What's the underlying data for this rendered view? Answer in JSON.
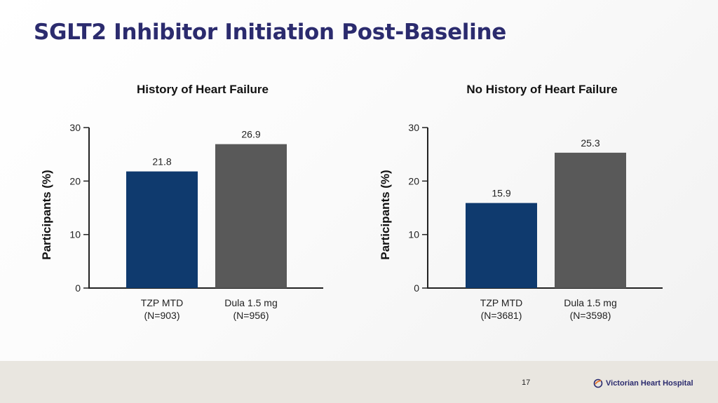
{
  "slide": {
    "title": "SGLT2 Inhibitor Initiation Post-Baseline",
    "page_number": "17",
    "logo_text": "Victorian Heart Hospital",
    "colors": {
      "title": "#2b2b6e",
      "tzp": "#0f3a6e",
      "dula": "#595959"
    }
  },
  "chart_data": [
    {
      "type": "bar",
      "title": "History of Heart Failure",
      "ylabel": "Participants (%)",
      "ylim": [
        0,
        30
      ],
      "yticks": [
        0,
        10,
        20,
        30
      ],
      "categories": [
        "TZP MTD",
        "Dula 1.5 mg"
      ],
      "category_sublabels": [
        "(N=903)",
        "(N=956)"
      ],
      "values": [
        21.8,
        26.9
      ],
      "value_labels": [
        "21.8",
        "26.9"
      ],
      "colors": [
        "#0f3a6e",
        "#595959"
      ],
      "grid": false
    },
    {
      "type": "bar",
      "title": "No History of Heart Failure",
      "ylabel": "Participants (%)",
      "ylim": [
        0,
        30
      ],
      "yticks": [
        0,
        10,
        20,
        30
      ],
      "categories": [
        "TZP MTD",
        "Dula 1.5 mg"
      ],
      "category_sublabels": [
        "(N=3681)",
        "(N=3598)"
      ],
      "values": [
        15.9,
        25.3
      ],
      "value_labels": [
        "15.9",
        "25.3"
      ],
      "colors": [
        "#0f3a6e",
        "#595959"
      ],
      "grid": false
    }
  ]
}
